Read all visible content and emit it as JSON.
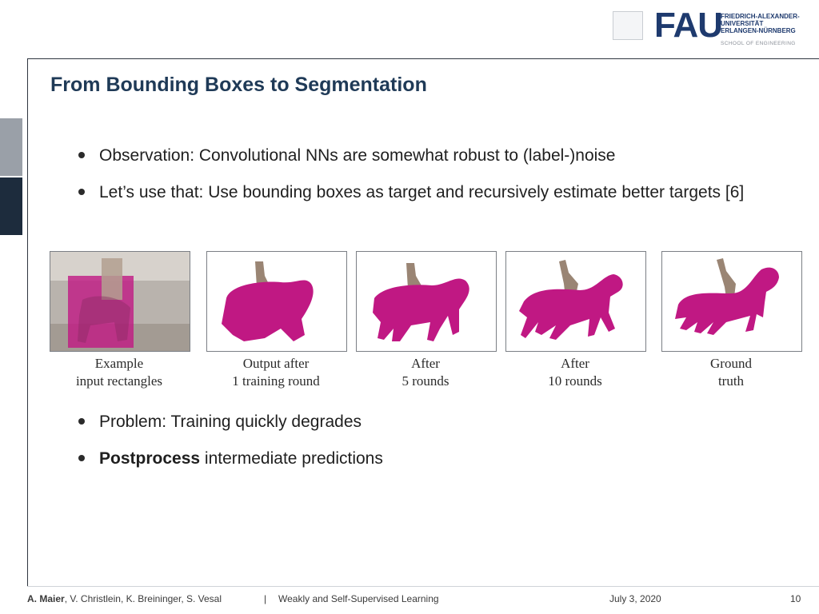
{
  "header": {
    "logo_text": "FAU",
    "university_lines": [
      "FRIEDRICH-ALEXANDER-",
      "UNIVERSITÄT",
      "ERLANGEN-NÜRNBERG"
    ],
    "school": "SCHOOL OF ENGINEERING"
  },
  "slide": {
    "title": "From Bounding Boxes to Segmentation",
    "bullets_top": [
      "Observation: Convolutional NNs are somewhat robust to (label-)noise",
      "Let’s use that: Use bounding boxes as target and recursively estimate better targets [6]"
    ],
    "panels": [
      {
        "caption_line1": "Example",
        "caption_line2": "input rectangles"
      },
      {
        "caption_line1": "Output after",
        "caption_line2": "1 training round"
      },
      {
        "caption_line1": "After",
        "caption_line2": "5 rounds"
      },
      {
        "caption_line1": "After",
        "caption_line2": "10 rounds"
      },
      {
        "caption_line1": "Ground",
        "caption_line2": "truth"
      }
    ],
    "bullets_bottom": [
      {
        "text": "Problem: Training quickly degrades"
      },
      {
        "bold": "Postprocess",
        "text": " intermediate predictions"
      }
    ]
  },
  "footer": {
    "authors_bold": "A. Maier",
    "authors_rest": ", V. Christlein, K. Breininger, S. Vesal",
    "separator": "|",
    "course": "Weakly and Self-Supervised Learning",
    "date": "July 3, 2020",
    "page": "10"
  },
  "colors": {
    "segmentation": "#c01883",
    "rider": "#9a8574",
    "title": "#1f3a57"
  }
}
